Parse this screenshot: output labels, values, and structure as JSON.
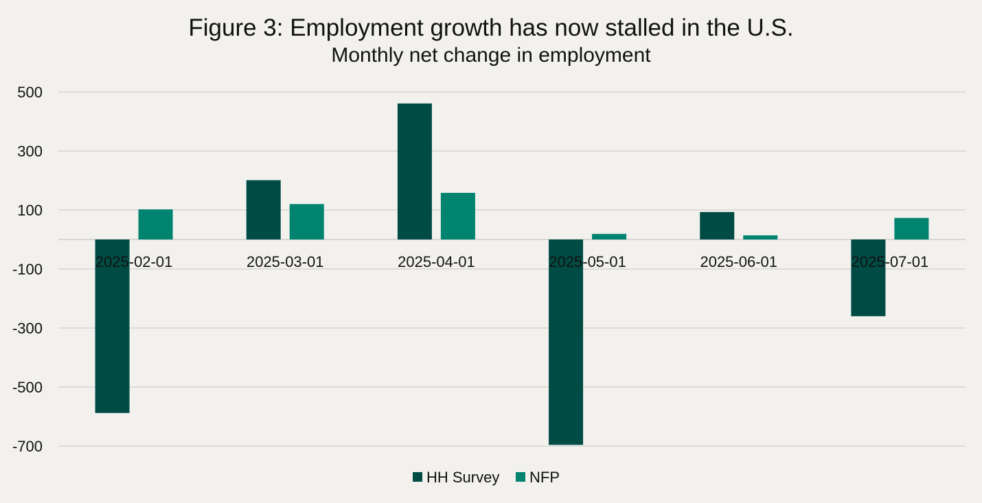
{
  "chart_data": {
    "type": "bar",
    "title": "Figure 3: Employment growth has now stalled in the U.S.",
    "subtitle": "Monthly net change in employment",
    "xlabel": "",
    "ylabel": "",
    "categories": [
      "2025-02-01",
      "2025-03-01",
      "2025-04-01",
      "2025-05-01",
      "2025-06-01",
      "2025-07-01"
    ],
    "series": [
      {
        "name": "HH Survey",
        "color": "#004c45",
        "values": [
          -588,
          201,
          461,
          -696,
          93,
          -260
        ]
      },
      {
        "name": "NFP",
        "color": "#00836f",
        "values": [
          102,
          120,
          158,
          19,
          14,
          73
        ]
      }
    ],
    "ylim": [
      -700,
      500
    ],
    "yticks": [
      500,
      300,
      100,
      -100,
      -300,
      -500,
      -700
    ],
    "grid": true,
    "legend": "bottom-center"
  }
}
